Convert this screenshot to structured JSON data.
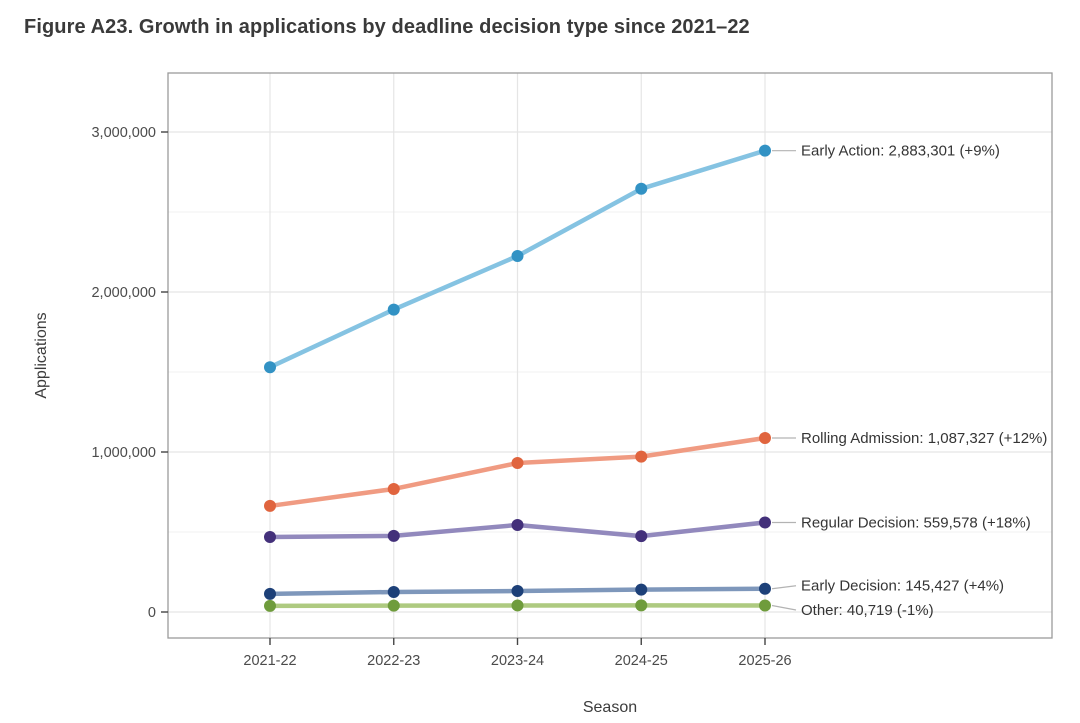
{
  "figure": {
    "title": "Figure A23. Growth in applications by deadline decision type since 2021–22"
  },
  "chart_data": {
    "type": "line",
    "title": "Figure A23. Growth in applications by deadline decision type since 2021–22",
    "xlabel": "Season",
    "ylabel": "Applications",
    "categories": [
      "2021-22",
      "2022-23",
      "2023-24",
      "2024-25",
      "2025-26"
    ],
    "y_axis": {
      "ticks": [
        {
          "value": 0,
          "label": "0"
        },
        {
          "value": 1000000,
          "label": "1,000,000"
        },
        {
          "value": 2000000,
          "label": "2,000,000"
        },
        {
          "value": 3000000,
          "label": "3,000,000"
        }
      ],
      "minor_ticks": [
        500000,
        1500000,
        2500000
      ],
      "range_shown": [
        0,
        3350000
      ]
    },
    "grid": true,
    "legend_position": "inline annotations at right ends of lines",
    "series": [
      {
        "name": "Early Action",
        "values": [
          1530000,
          1890000,
          2225000,
          2645000,
          2883301
        ],
        "final_label": "Early Action: 2,883,301 (+9%)",
        "line_color": "#85c3e2",
        "point_color": "#3292c4"
      },
      {
        "name": "Rolling Admission",
        "values": [
          663000,
          769000,
          931000,
          971000,
          1087327
        ],
        "final_label": "Rolling Admission: 1,087,327 (+12%)",
        "line_color": "#f09b82",
        "point_color": "#e0643e"
      },
      {
        "name": "Regular Decision",
        "values": [
          469000,
          476000,
          544000,
          474000,
          559578
        ],
        "final_label": "Regular Decision: 559,578 (+18%)",
        "line_color": "#9289bd",
        "point_color": "#43307a"
      },
      {
        "name": "Early Decision",
        "values": [
          113000,
          125000,
          131000,
          140000,
          145427
        ],
        "final_label": "Early Decision: 145,427 (+4%)",
        "line_color": "#7e97bb",
        "point_color": "#1d4078"
      },
      {
        "name": "Other",
        "values": [
          38000,
          40000,
          41000,
          41100,
          40719
        ],
        "final_label": "Other: 40,719 (-1%)",
        "line_color": "#aeca80",
        "point_color": "#6f9c3c"
      }
    ],
    "colors": {
      "panel_border": "#9b9b9b",
      "grid_major": "#e5e5e5",
      "grid_minor": "#f0f0f0",
      "tick_label": "#4b4b4b",
      "axis_title": "#3c3c3c",
      "annotation_text": "#353535",
      "leader_line": "#b3b3b3",
      "title_text": "#3a3a3a"
    }
  }
}
